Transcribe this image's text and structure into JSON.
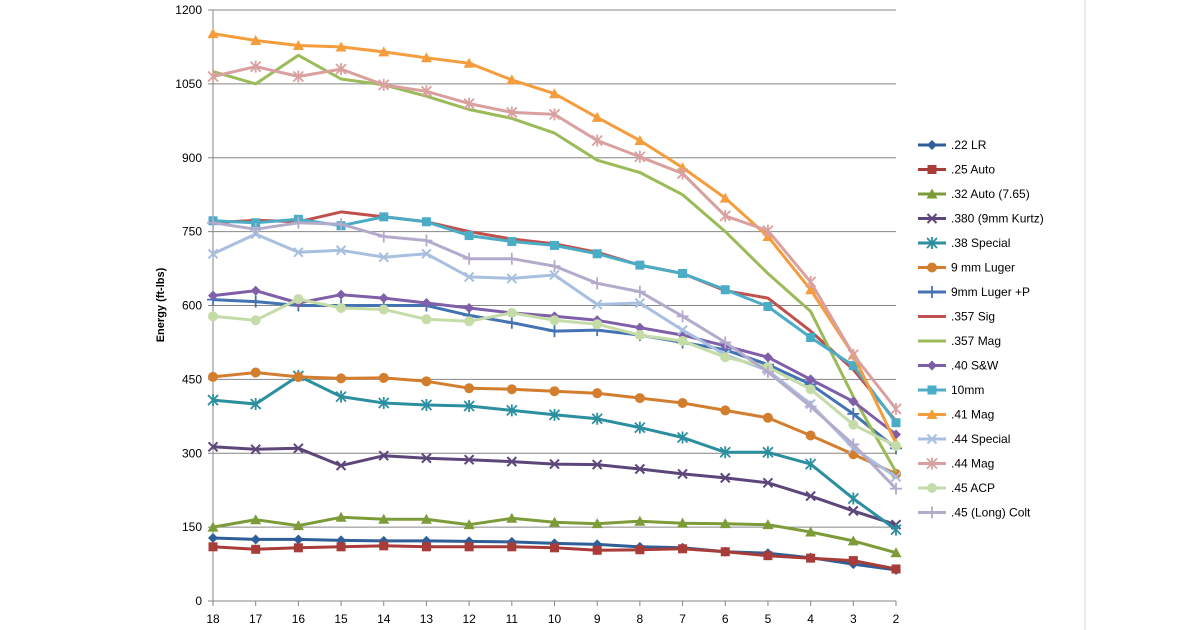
{
  "chart_data": {
    "type": "line",
    "title": "",
    "xlabel": "",
    "ylabel": "Energy (ft-lbs)",
    "ylim": [
      0,
      1200
    ],
    "yticks": [
      0,
      150,
      300,
      450,
      600,
      750,
      900,
      1050,
      1200
    ],
    "y_tick_labels": [
      "0",
      "150",
      "300",
      "450",
      "600",
      "750",
      "900",
      "1050",
      "1200"
    ],
    "x": [
      "18",
      "17",
      "16",
      "15",
      "14",
      "13",
      "12",
      "11",
      "10",
      "9",
      "8",
      "7",
      "6",
      "5",
      "4",
      "3",
      "2"
    ],
    "grid": "horizontal",
    "legend_position": "right",
    "series": [
      {
        "name": ".22 LR",
        "color": "#2f5f98",
        "marker": "diamond",
        "values": [
          128,
          125,
          125,
          123,
          122,
          122,
          121,
          120,
          117,
          115,
          110,
          108,
          100,
          97,
          88,
          75,
          63
        ]
      },
      {
        "name": ".25 Auto",
        "color": "#a83c38",
        "marker": "square",
        "values": [
          110,
          105,
          108,
          110,
          112,
          110,
          110,
          110,
          108,
          103,
          104,
          106,
          100,
          92,
          87,
          82,
          65
        ]
      },
      {
        "name": ".32 Auto (7.65)",
        "color": "#7d9b39",
        "marker": "triangle",
        "values": [
          150,
          165,
          153,
          170,
          166,
          166,
          155,
          168,
          160,
          157,
          162,
          158,
          157,
          155,
          140,
          122,
          98
        ]
      },
      {
        "name": ".380 (9mm Kurtz)",
        "color": "#5c467a",
        "marker": "x",
        "values": [
          313,
          308,
          310,
          275,
          295,
          290,
          287,
          283,
          278,
          277,
          268,
          258,
          250,
          240,
          213,
          183,
          155
        ]
      },
      {
        "name": ".38 Special",
        "color": "#2b8fa0",
        "marker": "star",
        "values": [
          408,
          400,
          457,
          415,
          402,
          398,
          396,
          387,
          378,
          370,
          352,
          332,
          302,
          302,
          278,
          208,
          145
        ]
      },
      {
        "name": "9 mm Luger",
        "color": "#d37e2f",
        "marker": "circle",
        "values": [
          455,
          464,
          455,
          452,
          453,
          446,
          432,
          430,
          426,
          422,
          412,
          402,
          387,
          372,
          336,
          298,
          258
        ]
      },
      {
        "name": "9mm Luger +P",
        "color": "#4473b3",
        "marker": "plus",
        "values": [
          612,
          608,
          600,
          600,
          600,
          600,
          580,
          565,
          548,
          550,
          540,
          525,
          510,
          480,
          440,
          380,
          310
        ]
      },
      {
        "name": ".357 Sig",
        "color": "#c0504d",
        "marker": "none",
        "values": [
          768,
          773,
          770,
          790,
          780,
          770,
          750,
          735,
          725,
          708,
          682,
          665,
          630,
          615,
          548,
          470,
          365
        ]
      },
      {
        "name": ".357 Mag",
        "color": "#9bbb59",
        "marker": "none",
        "values": [
          1075,
          1050,
          1108,
          1060,
          1048,
          1025,
          998,
          980,
          950,
          895,
          870,
          825,
          750,
          665,
          588,
          415,
          262
        ]
      },
      {
        "name": ".40 S&W",
        "color": "#7f5fa8",
        "marker": "diamond",
        "values": [
          620,
          630,
          605,
          622,
          615,
          605,
          595,
          585,
          578,
          570,
          555,
          540,
          518,
          495,
          450,
          405,
          338
        ]
      },
      {
        "name": "10mm",
        "color": "#4bacc6",
        "marker": "square",
        "values": [
          772,
          768,
          775,
          762,
          780,
          770,
          742,
          730,
          722,
          705,
          682,
          665,
          632,
          598,
          535,
          478,
          362
        ]
      },
      {
        "name": ".41 Mag",
        "color": "#f59d3d",
        "marker": "triangle",
        "values": [
          1152,
          1138,
          1128,
          1125,
          1115,
          1103,
          1092,
          1058,
          1030,
          982,
          935,
          880,
          818,
          740,
          632,
          500,
          320
        ]
      },
      {
        "name": ".44 Special",
        "color": "#a8bfdf",
        "marker": "x",
        "values": [
          705,
          745,
          708,
          712,
          698,
          705,
          658,
          655,
          662,
          602,
          605,
          550,
          500,
          468,
          400,
          310,
          252
        ]
      },
      {
        "name": ".44 Mag",
        "color": "#d9a09f",
        "marker": "star",
        "values": [
          1065,
          1085,
          1065,
          1080,
          1048,
          1035,
          1010,
          992,
          988,
          935,
          902,
          868,
          782,
          752,
          648,
          500,
          390
        ]
      },
      {
        "name": ".45 ACP",
        "color": "#c6dca8",
        "marker": "circle",
        "values": [
          578,
          570,
          613,
          595,
          592,
          572,
          568,
          585,
          570,
          562,
          540,
          528,
          495,
          475,
          430,
          358,
          315
        ]
      },
      {
        "name": ".45 (Long) Colt",
        "color": "#b4abcc",
        "marker": "plus",
        "values": [
          768,
          755,
          768,
          765,
          740,
          732,
          695,
          695,
          680,
          645,
          628,
          578,
          525,
          465,
          395,
          318,
          228
        ]
      }
    ]
  }
}
